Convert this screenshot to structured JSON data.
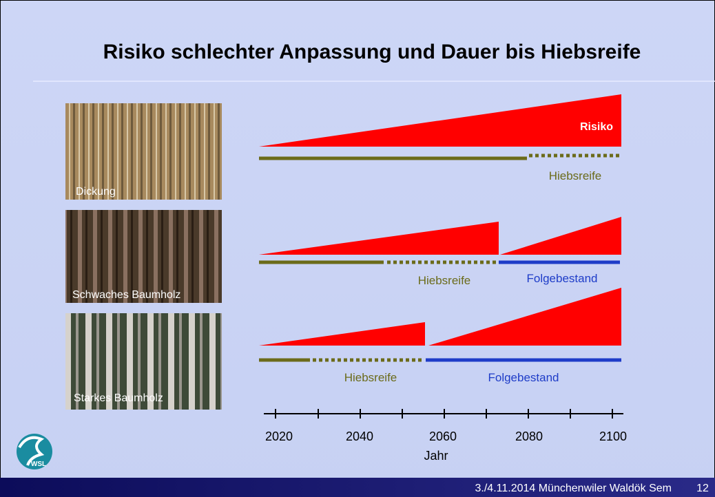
{
  "header": {
    "title": "Risiko schlechter Anpassung und Dauer bis Hiebsreife"
  },
  "rows": [
    {
      "photo_label": "Dickung",
      "labels": [
        "Risiko",
        "Hiebsreife"
      ]
    },
    {
      "photo_label": "Schwaches Baumholz",
      "labels": [
        "Hiebsreife",
        "Folgebestand"
      ]
    },
    {
      "photo_label": "Starkes Baumholz",
      "labels": [
        "Hiebsreife",
        "Folgebestand"
      ]
    }
  ],
  "axis": {
    "ticks": [
      "2020",
      "2040",
      "2060",
      "2080",
      "2100"
    ],
    "label": "Jahr"
  },
  "logo": "WSL",
  "footer": {
    "text": "3./4.11.2014 Münchenwiler Waldök Sem",
    "page": "12"
  }
}
